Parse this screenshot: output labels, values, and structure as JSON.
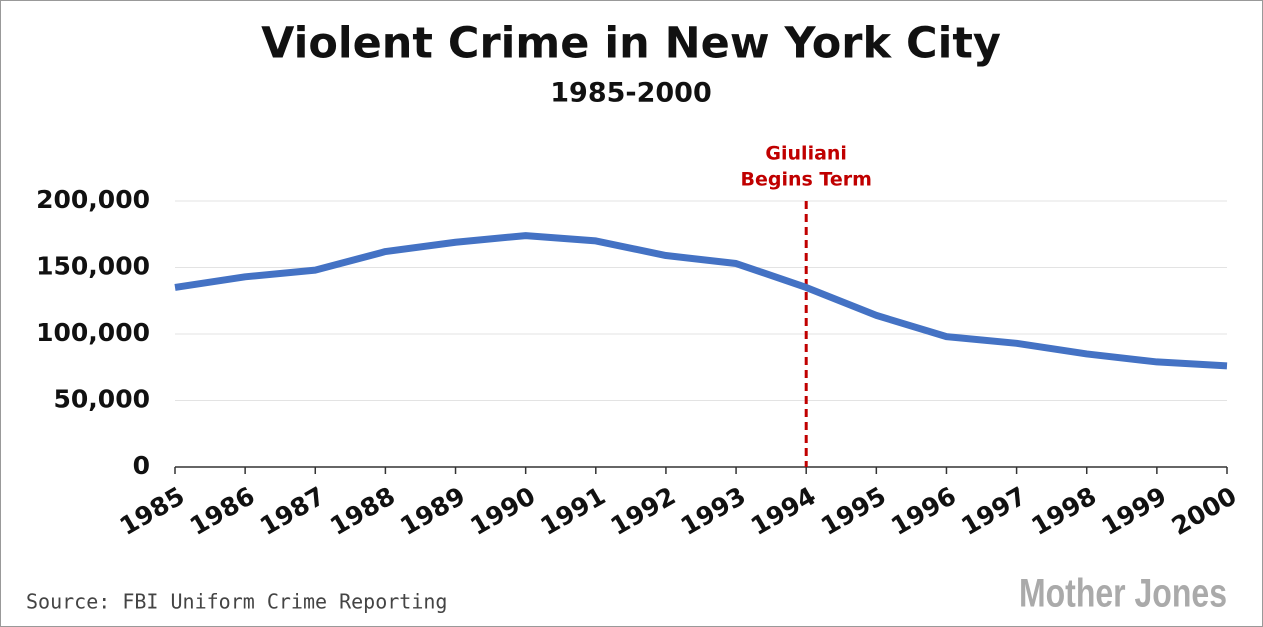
{
  "chart_data": {
    "type": "line",
    "title": "Violent Crime in New York City",
    "subtitle": "1985-2000",
    "x": [
      1985,
      1986,
      1987,
      1988,
      1989,
      1990,
      1991,
      1992,
      1993,
      1994,
      1995,
      1996,
      1997,
      1998,
      1999,
      2000
    ],
    "series": [
      {
        "name": "Violent crime",
        "color": "#4472c4",
        "values": [
          135000,
          143000,
          148000,
          162000,
          169000,
          174000,
          170000,
          159000,
          153000,
          135000,
          114000,
          98000,
          93000,
          85000,
          79000,
          76000
        ]
      }
    ],
    "xlim": [
      1985,
      2000
    ],
    "xticks": [
      1985,
      1986,
      1987,
      1988,
      1989,
      1990,
      1991,
      1992,
      1993,
      1994,
      1995,
      1996,
      1997,
      1998,
      1999,
      2000
    ],
    "ylim": [
      0,
      200000
    ],
    "yticks": [
      0,
      {
        "value": 50000,
        "label": "50,000"
      },
      {
        "value": 100000,
        "label": "100,000"
      },
      {
        "value": 150000,
        "label": "150,000"
      },
      {
        "value": 200000,
        "label": "200,000"
      }
    ],
    "grid": true,
    "annotation": {
      "x": 1994,
      "lines": [
        "Giuliani",
        "Begins Term"
      ],
      "color": "#c00000"
    },
    "source": "Source: FBI Uniform Crime Reporting",
    "logo": "Mother Jones"
  }
}
